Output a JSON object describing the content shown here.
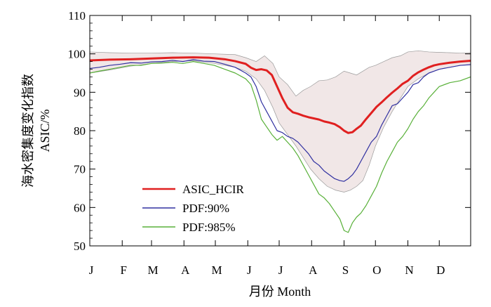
{
  "chart_data": {
    "type": "line",
    "title": "",
    "xlabel": "月份 Month",
    "ylabel": "海水密集度变化指数 ASIC/%",
    "ylabel_lines": [
      "海水密集度变化指数",
      "ASIC/%"
    ],
    "xlim": [
      1,
      365
    ],
    "ylim": [
      50,
      110
    ],
    "yticks": [
      50,
      60,
      70,
      80,
      90,
      100,
      110
    ],
    "xticks": [
      {
        "label": "J",
        "day": 1
      },
      {
        "label": "F",
        "day": 32
      },
      {
        "label": "M",
        "day": 60
      },
      {
        "label": "A",
        "day": 91
      },
      {
        "label": "M",
        "day": 121
      },
      {
        "label": "J",
        "day": 152
      },
      {
        "label": "J",
        "day": 182
      },
      {
        "label": "A",
        "day": 213
      },
      {
        "label": "S",
        "day": 244
      },
      {
        "label": "O",
        "day": 274
      },
      {
        "label": "N",
        "day": 305
      },
      {
        "label": "D",
        "day": 335
      }
    ],
    "legend_position": "lower-left",
    "band": {
      "color": "#f1e7e7",
      "x": [
        1,
        20,
        40,
        60,
        80,
        100,
        120,
        140,
        150,
        160,
        168,
        176,
        182,
        190,
        198,
        205,
        212,
        220,
        228,
        236,
        244,
        250,
        256,
        262,
        268,
        274,
        282,
        290,
        298,
        305,
        315,
        325,
        335,
        345,
        355,
        365
      ],
      "upper": [
        100.5,
        100.3,
        100.2,
        100.2,
        100.3,
        100.2,
        100.0,
        99.8,
        99.0,
        98.0,
        99.5,
        97.5,
        94.0,
        92.0,
        89.0,
        90.5,
        91.5,
        93.0,
        93.2,
        94.0,
        95.5,
        95.0,
        94.5,
        95.5,
        96.5,
        97.0,
        98.0,
        99.0,
        99.5,
        100.5,
        100.8,
        100.5,
        100.4,
        100.3,
        100.2,
        100.3
      ],
      "lower": [
        95.0,
        95.8,
        96.8,
        97.5,
        98.0,
        98.2,
        97.5,
        96.5,
        95.5,
        93.5,
        90.5,
        86.0,
        82.0,
        79.0,
        76.0,
        73.0,
        70.0,
        67.5,
        65.5,
        64.5,
        64.0,
        64.5,
        65.5,
        67.0,
        71.0,
        76.0,
        81.0,
        85.0,
        88.5,
        91.5,
        93.5,
        95.0,
        96.0,
        96.5,
        97.0,
        97.2
      ]
    },
    "series": [
      {
        "name": "ASIC_HCIR",
        "color": "#e02020",
        "x": [
          1,
          20,
          40,
          60,
          80,
          100,
          115,
          130,
          140,
          150,
          155,
          160,
          165,
          170,
          175,
          180,
          185,
          190,
          195,
          200,
          205,
          210,
          215,
          220,
          225,
          230,
          235,
          240,
          244,
          248,
          252,
          256,
          260,
          265,
          270,
          275,
          280,
          285,
          290,
          295,
          300,
          305,
          310,
          315,
          320,
          325,
          330,
          335,
          345,
          355,
          365
        ],
        "values": [
          98.3,
          98.5,
          98.6,
          98.8,
          99.0,
          99.1,
          99.0,
          98.6,
          98.1,
          97.4,
          96.4,
          95.8,
          96.0,
          95.7,
          94.5,
          91.5,
          88.5,
          86.0,
          84.8,
          84.4,
          83.9,
          83.5,
          83.2,
          82.9,
          82.4,
          82.1,
          81.7,
          80.9,
          80.0,
          79.4,
          79.6,
          80.5,
          81.3,
          83.0,
          84.6,
          86.2,
          87.4,
          88.7,
          89.9,
          91.0,
          92.2,
          93.0,
          94.3,
          95.2,
          95.9,
          96.5,
          97.0,
          97.3,
          97.7,
          98.0,
          98.2
        ]
      },
      {
        "name": "PDF:90%",
        "color": "#3030a0",
        "x": [
          1,
          10,
          20,
          30,
          40,
          50,
          60,
          70,
          80,
          90,
          100,
          110,
          120,
          130,
          140,
          150,
          155,
          160,
          165,
          170,
          175,
          180,
          185,
          190,
          195,
          200,
          205,
          210,
          215,
          220,
          225,
          230,
          235,
          240,
          244,
          248,
          252,
          256,
          260,
          265,
          270,
          275,
          280,
          285,
          290,
          295,
          300,
          305,
          310,
          315,
          320,
          325,
          330,
          335,
          345,
          355,
          365
        ],
        "values": [
          96.2,
          96.5,
          97.0,
          97.3,
          97.7,
          97.6,
          97.9,
          98.0,
          98.3,
          98.0,
          98.5,
          98.1,
          98.0,
          97.3,
          96.5,
          95.0,
          94.0,
          91.5,
          87.5,
          85.0,
          82.5,
          80.0,
          79.5,
          78.5,
          78.0,
          77.0,
          75.5,
          74.0,
          72.0,
          71.0,
          69.5,
          68.5,
          67.5,
          67.0,
          66.8,
          67.5,
          68.5,
          70.0,
          72.0,
          74.5,
          77.0,
          78.5,
          81.5,
          84.0,
          86.5,
          87.0,
          88.5,
          90.0,
          92.0,
          92.5,
          94.0,
          95.0,
          95.5,
          96.0,
          96.5,
          97.0,
          97.2
        ]
      },
      {
        "name": "PDF:985%",
        "color": "#58b038",
        "x": [
          1,
          10,
          20,
          30,
          40,
          50,
          60,
          70,
          80,
          90,
          100,
          110,
          120,
          130,
          140,
          150,
          155,
          160,
          165,
          170,
          175,
          180,
          185,
          190,
          195,
          200,
          205,
          210,
          215,
          220,
          225,
          230,
          235,
          240,
          244,
          248,
          252,
          256,
          260,
          265,
          270,
          275,
          280,
          285,
          290,
          295,
          300,
          305,
          310,
          315,
          320,
          325,
          330,
          335,
          345,
          355,
          365
        ],
        "values": [
          95.0,
          95.5,
          96.0,
          96.5,
          97.0,
          97.0,
          97.5,
          97.6,
          97.8,
          97.5,
          98.0,
          97.5,
          97.0,
          96.0,
          95.0,
          93.5,
          92.0,
          88.0,
          83.0,
          81.0,
          79.0,
          77.5,
          78.5,
          77.0,
          75.5,
          73.5,
          71.0,
          68.5,
          66.0,
          63.5,
          62.5,
          61.0,
          59.0,
          57.0,
          54.0,
          53.5,
          56.0,
          57.5,
          58.5,
          60.5,
          63.0,
          65.5,
          69.0,
          72.0,
          74.5,
          77.0,
          78.5,
          80.5,
          83.0,
          85.0,
          86.5,
          88.5,
          90.0,
          91.5,
          92.5,
          93.0,
          94.0
        ]
      }
    ]
  }
}
